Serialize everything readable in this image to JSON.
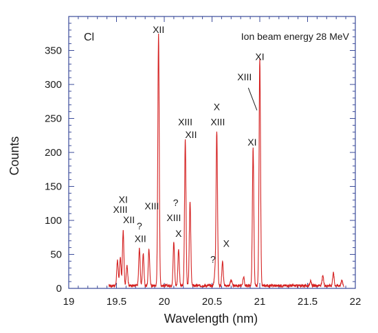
{
  "chart_data": {
    "type": "line",
    "title": "",
    "xlabel": "Wavelength (nm)",
    "ylabel": "Counts",
    "xlim": [
      19,
      22
    ],
    "ylim": [
      0,
      400
    ],
    "x_ticks": [
      19,
      19.5,
      20,
      20.5,
      21,
      21.5,
      22
    ],
    "x_tick_labels": [
      "19",
      "19.5",
      "20",
      "20.5",
      "21",
      "21.5",
      "22"
    ],
    "y_ticks": [
      0,
      50,
      100,
      150,
      200,
      250,
      300,
      350
    ],
    "y_tick_labels": [
      "0",
      "50",
      "100",
      "150",
      "200",
      "250",
      "300",
      "350"
    ],
    "element_label": "Cl",
    "energy_label": "Ion beam energy 28 MeV",
    "line_color": "#d42020",
    "axis_color": "#3a4a9a",
    "series": [
      {
        "peaks": [
          {
            "x": 19.51,
            "y": 38
          },
          {
            "x": 19.54,
            "y": 42
          },
          {
            "x": 19.57,
            "y": 81
          },
          {
            "x": 19.61,
            "y": 31
          },
          {
            "x": 19.74,
            "y": 55
          },
          {
            "x": 19.78,
            "y": 47
          },
          {
            "x": 19.84,
            "y": 53
          },
          {
            "x": 19.94,
            "y": 370
          },
          {
            "x": 20.1,
            "y": 64
          },
          {
            "x": 20.15,
            "y": 53
          },
          {
            "x": 20.22,
            "y": 214
          },
          {
            "x": 20.27,
            "y": 125
          },
          {
            "x": 20.53,
            "y": 18
          },
          {
            "x": 20.55,
            "y": 227
          },
          {
            "x": 20.61,
            "y": 35
          },
          {
            "x": 20.7,
            "y": 9
          },
          {
            "x": 20.83,
            "y": 13
          },
          {
            "x": 20.93,
            "y": 202
          },
          {
            "x": 21.0,
            "y": 333
          },
          {
            "x": 21.53,
            "y": 7
          },
          {
            "x": 21.66,
            "y": 14
          },
          {
            "x": 21.77,
            "y": 19
          },
          {
            "x": 21.86,
            "y": 8
          }
        ]
      }
    ],
    "annotations": [
      {
        "text": "XI",
        "x": 19.57,
        "y": 126
      },
      {
        "text": "XIII",
        "x": 19.54,
        "y": 111
      },
      {
        "text": "XII",
        "x": 19.63,
        "y": 96
      },
      {
        "text": "?",
        "x": 19.74,
        "y": 87
      },
      {
        "text": "XII",
        "x": 19.75,
        "y": 68
      },
      {
        "text": "XII",
        "x": 19.94,
        "y": 376
      },
      {
        "text": "XIII",
        "x": 19.87,
        "y": 116
      },
      {
        "text": "?",
        "x": 20.12,
        "y": 121
      },
      {
        "text": "XIII",
        "x": 20.1,
        "y": 99
      },
      {
        "text": "X",
        "x": 20.15,
        "y": 76
      },
      {
        "text": "XIII",
        "x": 20.22,
        "y": 240
      },
      {
        "text": "XII",
        "x": 20.28,
        "y": 221
      },
      {
        "text": "X",
        "x": 20.55,
        "y": 262
      },
      {
        "text": "XIII",
        "x": 20.56,
        "y": 240
      },
      {
        "text": "?",
        "x": 20.51,
        "y": 38
      },
      {
        "text": "X",
        "x": 20.65,
        "y": 61
      },
      {
        "text": "XIII",
        "x": 20.84,
        "y": 306
      },
      {
        "text": "XI",
        "x": 20.92,
        "y": 210
      },
      {
        "text": "XI",
        "x": 21.0,
        "y": 336
      }
    ],
    "grid": false,
    "legend": "none"
  }
}
